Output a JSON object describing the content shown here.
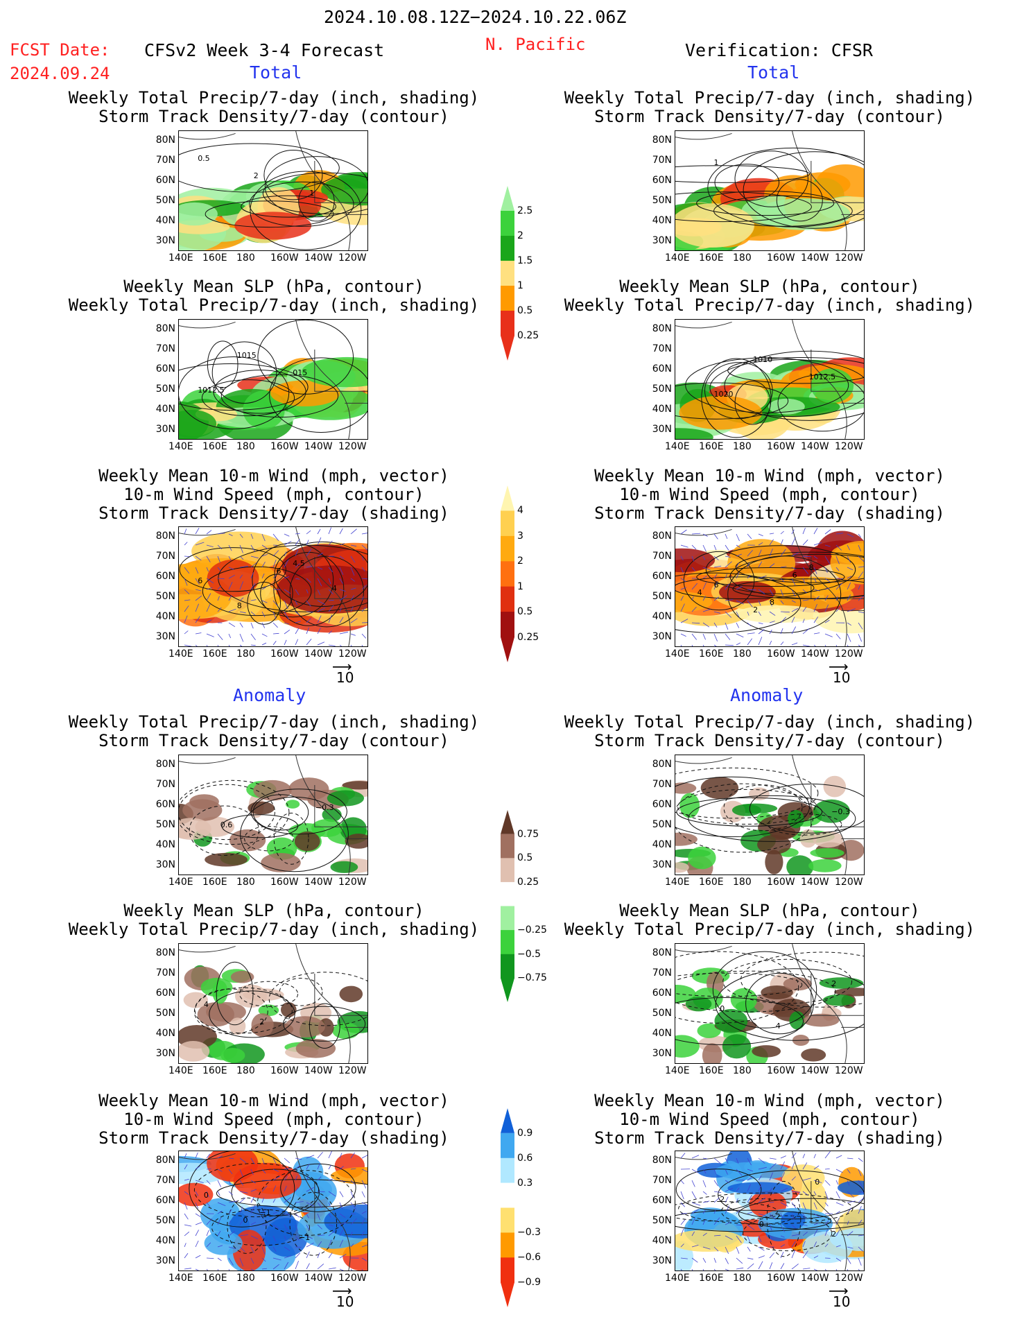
{
  "header": {
    "date_range": "2024.10.08.12Z−2024.10.22.06Z",
    "fcst_label": "FCST Date:",
    "fcst_date": "2024.09.24",
    "model": "CFSv2 Week 3-4 Forecast",
    "region": "N. Pacific",
    "verification": "Verification: CFSR"
  },
  "sections": {
    "total": "Total",
    "anomaly": "Anomaly"
  },
  "panel_titles": {
    "precip_storm": [
      "Weekly Total Precip/7-day (inch, shading)",
      "Storm Track Density/7-day (contour)"
    ],
    "slp_precip": [
      "Weekly Mean SLP (hPa, contour)",
      "Weekly Total Precip/7-day (inch, shading)"
    ],
    "wind": [
      "Weekly Mean 10-m Wind (mph, vector)",
      "10-m Wind Speed (mph, contour)",
      "Storm Track Density/7-day (shading)"
    ]
  },
  "axes": {
    "lat": [
      "80N",
      "70N",
      "60N",
      "50N",
      "40N",
      "30N"
    ],
    "lon": [
      "140E",
      "160E",
      "180",
      "160W",
      "140W",
      "120W"
    ]
  },
  "vector_ref": "10",
  "colorbars": {
    "precip_total": {
      "labels": [
        "2.5",
        "2",
        "1.5",
        "1",
        "0.5",
        "0.25"
      ],
      "colors": [
        "#e8301a",
        "#ff9a00",
        "#ffe080",
        "#1aa61a",
        "#3cd23c",
        "#a0f0a0"
      ]
    },
    "storm_total": {
      "labels": [
        "4",
        "3",
        "2",
        "1",
        "0.5",
        "0.25"
      ],
      "colors": [
        "#a01010",
        "#e03010",
        "#ff7010",
        "#ffaa10",
        "#ffd050",
        "#fff5b0"
      ]
    },
    "precip_anom": {
      "labels": [
        "0.75",
        "0.5",
        "0.25",
        "−0.25",
        "−0.5",
        "−0.75"
      ],
      "colors": [
        "#10961e",
        "#3cd23c",
        "#a0f0a0",
        "#ffffff",
        "#e0c0b0",
        "#a07060",
        "#603828"
      ]
    },
    "storm_anom": {
      "labels": [
        "0.9",
        "0.6",
        "0.3",
        "−0.3",
        "−0.6",
        "−0.9"
      ],
      "colors": [
        "#f03010",
        "#ff9a00",
        "#ffe070",
        "#ffffff",
        "#b0e8ff",
        "#40a8f0",
        "#1060d8"
      ]
    }
  },
  "contour_labels": {
    "l1": [
      "0.5",
      "2",
      "1"
    ],
    "r1": [
      "1"
    ],
    "l2": [
      "1015",
      "015",
      "1012.5"
    ],
    "r2": [
      "1010",
      "1012.5",
      "1020"
    ],
    "l3": [
      "6",
      "4",
      "8",
      "4.5",
      "6"
    ],
    "r3": [
      "6",
      "4",
      "2",
      "8",
      "6",
      "8"
    ],
    "l4": [
      "−0.3",
      "0.6"
    ],
    "r4": [
      "−0.3"
    ],
    "l5": [
      "4",
      "2"
    ],
    "r5": [
      "0",
      "4",
      "2"
    ],
    "l6": [
      "0",
      "−1",
      "0",
      "−1"
    ],
    "r6": [
      "0",
      "0",
      "2",
      "2",
      "2"
    ]
  }
}
